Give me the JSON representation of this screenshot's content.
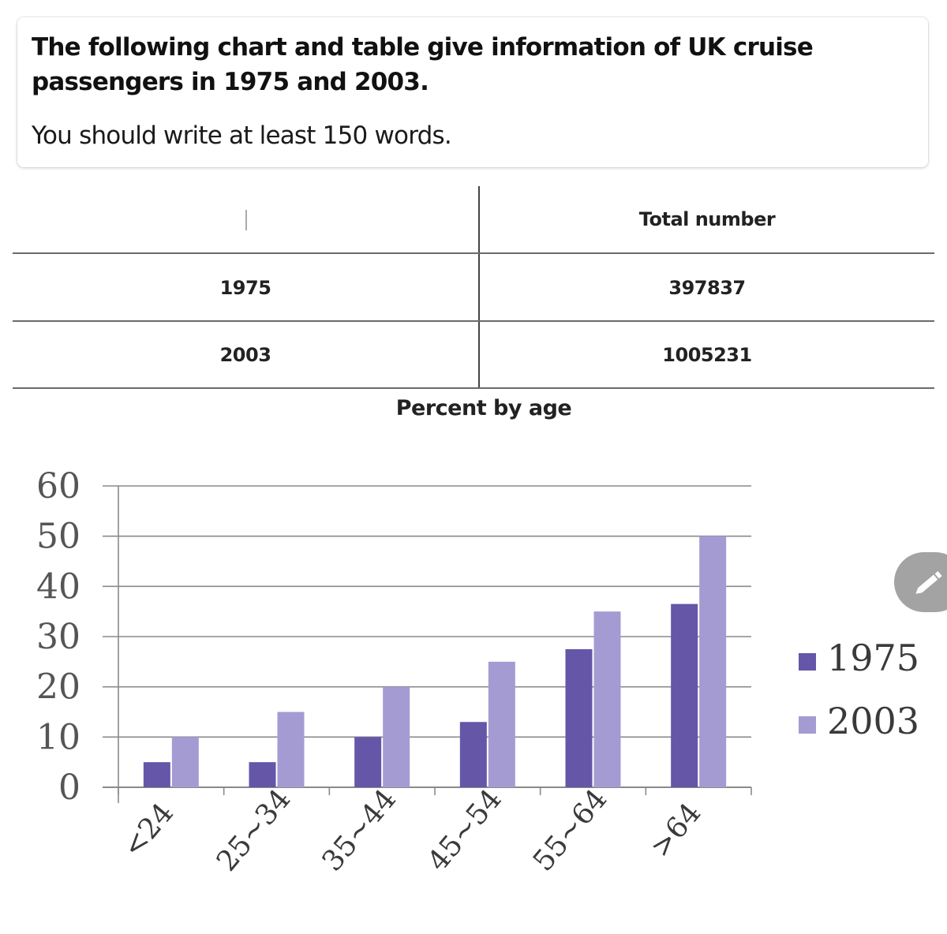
{
  "prompt": {
    "title": "The following chart and table give information of UK cruise passengers in 1975 and 2003.",
    "instruction": "You should write at least 150 words."
  },
  "table": {
    "header": [
      "",
      "Total number"
    ],
    "rows": [
      {
        "year": "1975",
        "total": "397837"
      },
      {
        "year": "2003",
        "total": "1005231"
      }
    ]
  },
  "chart_data": {
    "type": "bar",
    "title": "Percent by age",
    "categories": [
      "<24",
      "25~34",
      "35~44",
      "45~54",
      "55~64",
      ">64"
    ],
    "series": [
      {
        "name": "1975",
        "values": [
          5,
          5,
          10,
          13,
          27.5,
          36.5
        ],
        "color": "#6556a8"
      },
      {
        "name": "2003",
        "values": [
          10,
          15,
          20,
          25,
          35,
          50
        ],
        "color": "#a59bd3"
      }
    ],
    "ylim": [
      0,
      60
    ],
    "yticks": [
      0,
      10,
      20,
      30,
      40,
      50,
      60
    ],
    "grid": true,
    "legend": "right"
  },
  "icons": {
    "edit_button": "pencil-icon"
  }
}
